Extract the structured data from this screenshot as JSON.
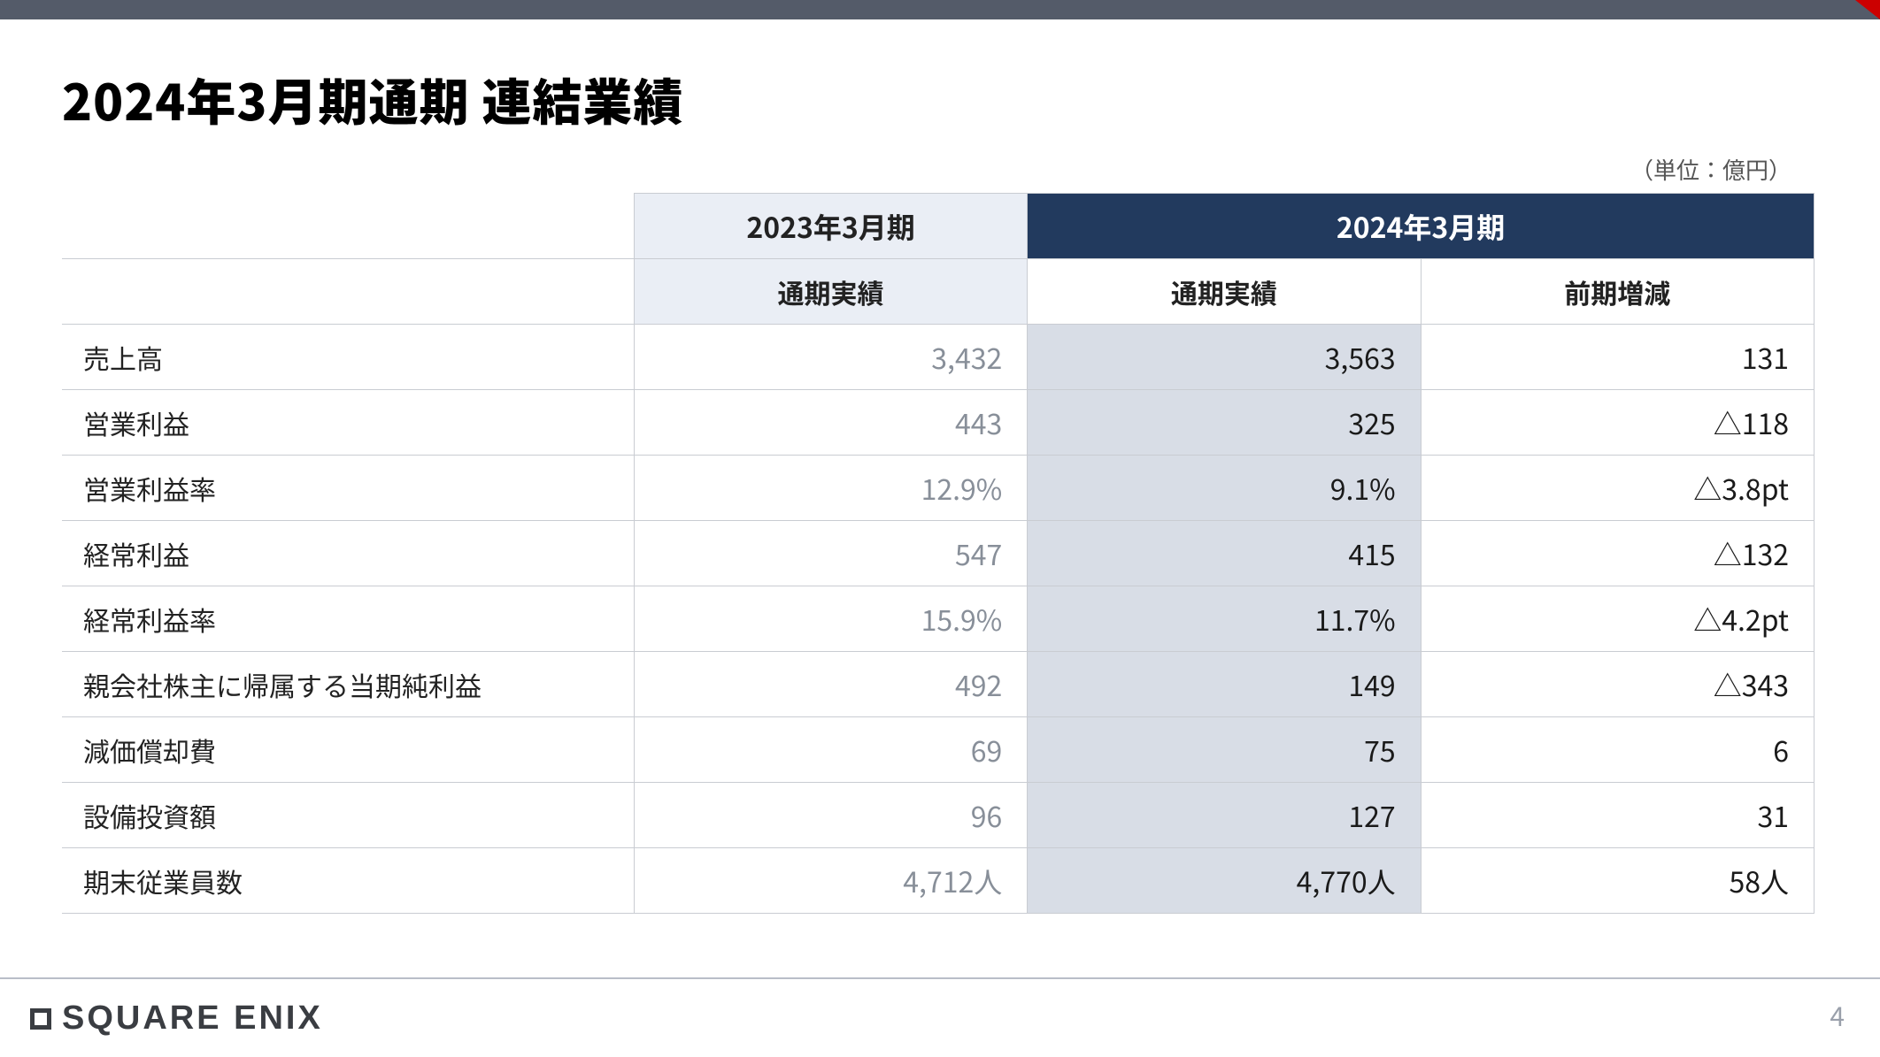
{
  "slide": {
    "title": "2024年3月期通期 連結業績",
    "unit": "（単位：億円）",
    "page_number": "4",
    "logo_text": "SQUARE ENIX"
  },
  "table": {
    "header_2023": "2023年3月期",
    "header_2024": "2024年3月期",
    "sub_2023": "通期実績",
    "sub_2024_actual": "通期実績",
    "sub_2024_change": "前期増減",
    "rows": [
      {
        "label": "売上高",
        "fy23": "3,432",
        "fy24": "3,563",
        "chg": "131"
      },
      {
        "label": "営業利益",
        "fy23": "443",
        "fy24": "325",
        "chg": "△118"
      },
      {
        "label": "営業利益率",
        "fy23": "12.9%",
        "fy24": "9.1%",
        "chg": "△3.8pt"
      },
      {
        "label": "経常利益",
        "fy23": "547",
        "fy24": "415",
        "chg": "△132"
      },
      {
        "label": "経常利益率",
        "fy23": "15.9%",
        "fy24": "11.7%",
        "chg": "△4.2pt"
      },
      {
        "label": "親会社株主に帰属する当期純利益",
        "fy23": "492",
        "fy24": "149",
        "chg": "△343"
      },
      {
        "label": "減価償却費",
        "fy23": "69",
        "fy24": "75",
        "chg": "6"
      },
      {
        "label": "設備投資額",
        "fy23": "96",
        "fy24": "127",
        "chg": "31"
      },
      {
        "label": "期末従業員数",
        "fy23": "4,712人",
        "fy24": "4,770人",
        "chg": "58人"
      }
    ]
  },
  "colors": {
    "topbar": "#545b69",
    "accent": "#cc0000",
    "hdr_2023_bg": "#eaeef5",
    "hdr_2024_bg": "#223a5e",
    "cell_2024_highlight_bg": "#d8dde6",
    "border": "#c9ccd2",
    "text_2023": "#888f99",
    "text_main": "#1a1a1a"
  }
}
